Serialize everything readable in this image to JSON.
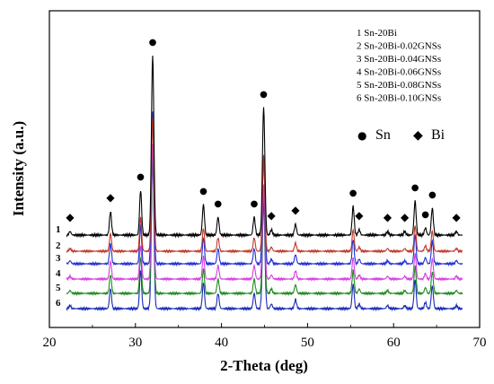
{
  "chart_data": {
    "type": "line",
    "title": "",
    "xlabel": "2-Theta (deg)",
    "ylabel": "Intensity (a.u.)",
    "xlim": [
      20,
      70
    ],
    "xticks": [
      20,
      30,
      40,
      50,
      60,
      70
    ],
    "grid": false,
    "series": [
      {
        "label": "1",
        "name": "Sn-20Bi",
        "color": "#000000"
      },
      {
        "label": "2",
        "name": "Sn-20Bi-0.02GNSs",
        "color": "#c0392b"
      },
      {
        "label": "3",
        "name": "Sn-20Bi-0.04GNSs",
        "color": "#1f2fd6"
      },
      {
        "label": "4",
        "name": "Sn-20Bi-0.06GNSs",
        "color": "#d63fe0"
      },
      {
        "label": "5",
        "name": "Sn-20Bi-0.08GNSs",
        "color": "#1e8a1e"
      },
      {
        "label": "6",
        "name": "Sn-20Bi-0.10GNSs",
        "color": "#1a2bb5"
      }
    ],
    "peaks": [
      {
        "x": 22.4,
        "phase": "Bi",
        "rel_height": 0.02
      },
      {
        "x": 27.1,
        "phase": "Bi",
        "rel_height": 0.13
      },
      {
        "x": 30.6,
        "phase": "Sn",
        "rel_height": 0.25
      },
      {
        "x": 32.0,
        "phase": "Sn",
        "rel_height": 1.0
      },
      {
        "x": 37.9,
        "phase": "Sn",
        "rel_height": 0.17
      },
      {
        "x": 39.6,
        "phase": "Sn",
        "rel_height": 0.1
      },
      {
        "x": 43.8,
        "phase": "Sn",
        "rel_height": 0.1
      },
      {
        "x": 44.9,
        "phase": "Sn",
        "rel_height": 0.71
      },
      {
        "x": 45.8,
        "phase": "Bi",
        "rel_height": 0.03
      },
      {
        "x": 48.6,
        "phase": "Bi",
        "rel_height": 0.06
      },
      {
        "x": 55.3,
        "phase": "Sn",
        "rel_height": 0.16
      },
      {
        "x": 56.0,
        "phase": "Bi",
        "rel_height": 0.03
      },
      {
        "x": 59.3,
        "phase": "Bi",
        "rel_height": 0.02
      },
      {
        "x": 61.3,
        "phase": "Bi",
        "rel_height": 0.02
      },
      {
        "x": 62.5,
        "phase": "Sn",
        "rel_height": 0.19
      },
      {
        "x": 63.7,
        "phase": "Sn",
        "rel_height": 0.04
      },
      {
        "x": 64.5,
        "phase": "Sn",
        "rel_height": 0.15
      },
      {
        "x": 67.3,
        "phase": "Bi",
        "rel_height": 0.02
      }
    ],
    "marker_legend": [
      {
        "symbol": "●",
        "label": "Sn"
      },
      {
        "symbol": "◆",
        "label": "Bi"
      }
    ]
  }
}
